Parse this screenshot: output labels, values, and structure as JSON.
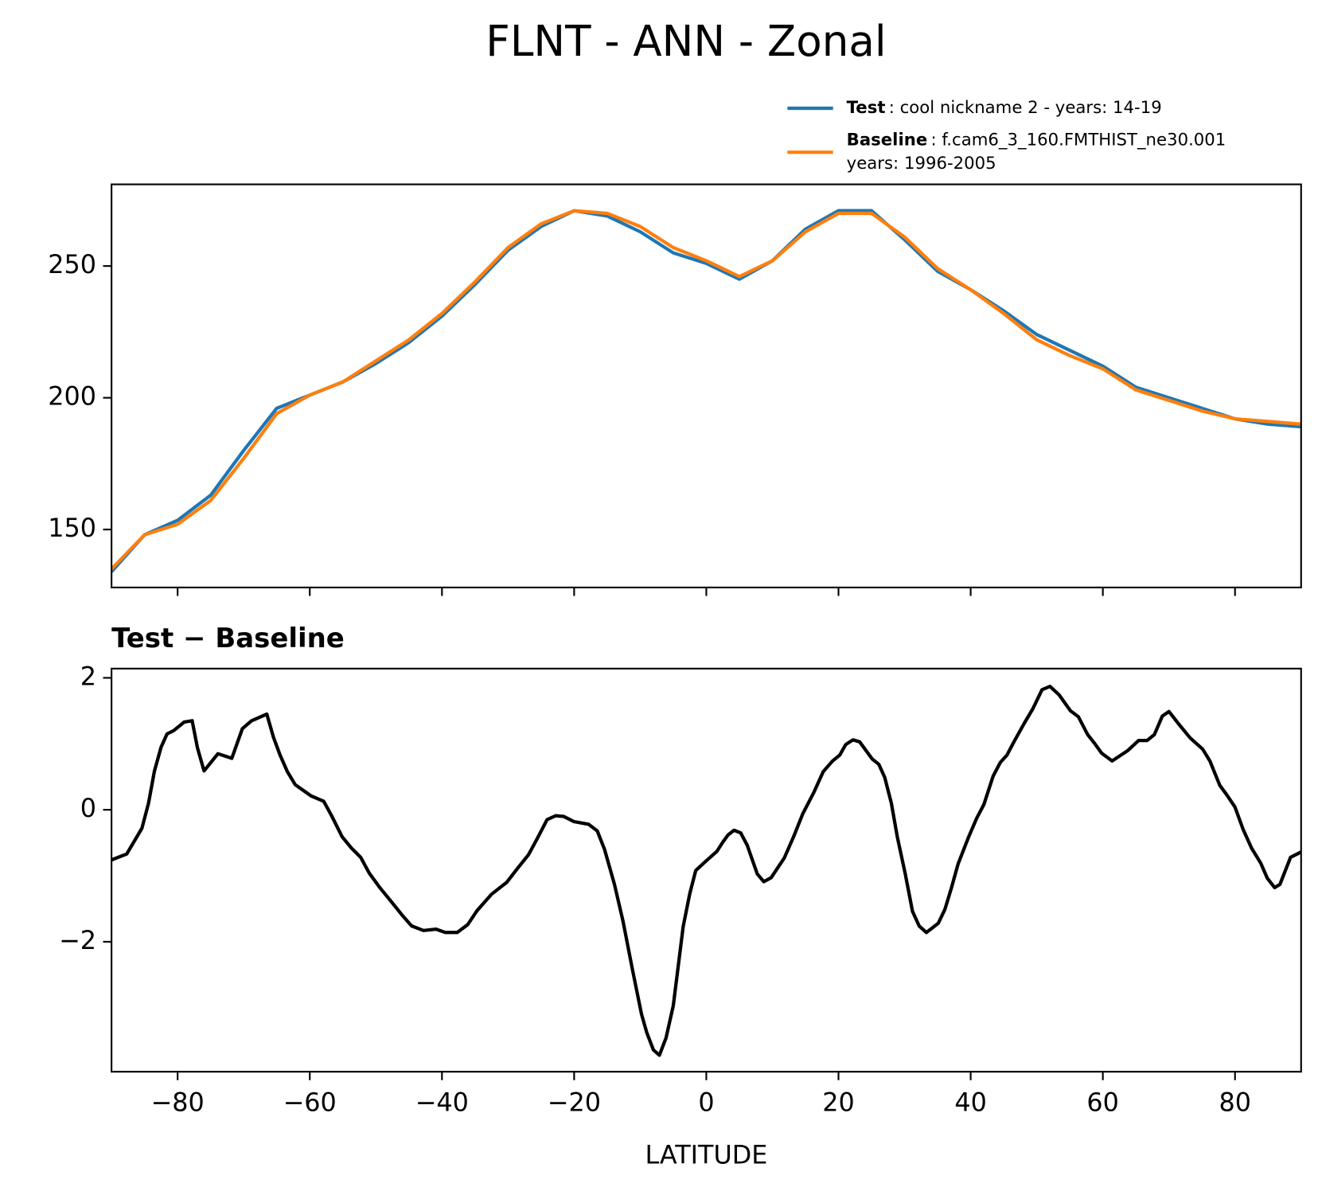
{
  "title": "FLNT - ANN - Zonal",
  "chart_data": [
    {
      "type": "line",
      "x": [
        -90,
        -85,
        -80,
        -75,
        -70,
        -65,
        -60,
        -55,
        -50,
        -45,
        -40,
        -35,
        -30,
        -25,
        -20,
        -15,
        -10,
        -5,
        0,
        5,
        10,
        15,
        20,
        25,
        30,
        35,
        40,
        45,
        50,
        55,
        60,
        65,
        70,
        75,
        80,
        85,
        90
      ],
      "series": [
        {
          "name": "Test",
          "legend_text": [
            ": cool nickname 2 - years: 14-19"
          ],
          "color": "#1f77b4",
          "values": [
            134,
            148,
            153.5,
            163,
            180,
            196,
            201,
            206,
            213,
            221,
            231,
            243,
            256,
            265,
            271,
            269,
            263,
            255,
            251,
            245,
            252,
            264,
            271,
            271,
            260,
            248,
            241,
            233,
            224,
            218,
            212,
            204,
            200,
            196,
            192,
            190,
            189
          ]
        },
        {
          "name": "Baseline",
          "legend_text": [
            ": f.cam6_3_160.FMTHIST_ne30.001",
            "years: 1996-2005"
          ],
          "color": "#ff7f0e",
          "values": [
            135,
            148,
            152,
            161,
            177,
            194,
            201,
            206,
            214,
            222,
            232,
            244,
            257,
            266,
            271,
            270,
            265,
            257,
            252,
            246,
            252,
            263,
            270,
            270,
            261,
            249,
            241,
            232,
            222,
            216,
            211,
            203,
            199,
            195,
            192,
            191,
            190
          ]
        }
      ],
      "xlim": [
        -90,
        90
      ],
      "xticks": [
        -80,
        -60,
        -40,
        -20,
        0,
        20,
        40,
        60,
        80
      ],
      "xticklabels": false,
      "ylim": [
        128,
        281
      ],
      "yticks": [
        150,
        200,
        250
      ],
      "legend": "upper right"
    },
    {
      "type": "line",
      "title": "Test − Baseline",
      "xlabel": "LATITUDE",
      "x": [
        -90,
        -87.7,
        -85.4,
        -84.4,
        -83.5,
        -82.5,
        -81.6,
        -80.6,
        -79,
        -77.8,
        -77,
        -76,
        -73.9,
        -71.8,
        -70.2,
        -68.8,
        -66.5,
        -65.5,
        -64.5,
        -63.4,
        -62.2,
        -59.8,
        -57.9,
        -56.7,
        -55.1,
        -53.7,
        -52.3,
        -51,
        -49.4,
        -47.6,
        -46,
        -44.6,
        -42.8,
        -40.9,
        -39.5,
        -37.7,
        -36.1,
        -34.7,
        -32.5,
        -30.2,
        -28.5,
        -26.9,
        -25.6,
        -24.1,
        -22.8,
        -21.6,
        -20,
        -17.8,
        -16.5,
        -15.4,
        -13.9,
        -12.6,
        -11.2,
        -9.8,
        -9,
        -8,
        -7.1,
        -6.1,
        -5,
        -3.5,
        -2.5,
        -1.6,
        -0.2,
        1.6,
        2.5,
        3.3,
        4.2,
        5.2,
        6.2,
        7.7,
        8.7,
        9.8,
        11.8,
        13.2,
        14.6,
        16.3,
        17.7,
        19.1,
        20.2,
        21.1,
        22.2,
        23.2,
        25.1,
        26.1,
        27,
        28,
        28.9,
        30.1,
        31.2,
        32.2,
        33.3,
        35.1,
        36.1,
        37.1,
        38.1,
        39.7,
        40.9,
        42,
        43.4,
        44.5,
        45.5,
        46.6,
        48.1,
        49.4,
        50.8,
        52,
        53.4,
        55.1,
        56.3,
        57.7,
        58.8,
        59.8,
        61.4,
        62.6,
        63.8,
        65.4,
        66.7,
        67.8,
        69,
        70,
        71.4,
        73.2,
        75.1,
        76.2,
        77.7,
        78.8,
        80,
        81.2,
        82.5,
        83.9,
        84.9,
        86,
        86.8,
        88.4,
        90
      ],
      "series": [
        {
          "color": "#000000",
          "values": [
            -0.76,
            -0.67,
            -0.28,
            0.1,
            0.59,
            0.95,
            1.15,
            1.2,
            1.33,
            1.35,
            0.94,
            0.59,
            0.85,
            0.78,
            1.23,
            1.35,
            1.45,
            1.1,
            0.83,
            0.58,
            0.38,
            0.21,
            0.13,
            -0.09,
            -0.41,
            -0.58,
            -0.72,
            -0.96,
            -1.18,
            -1.4,
            -1.6,
            -1.76,
            -1.83,
            -1.81,
            -1.86,
            -1.86,
            -1.74,
            -1.53,
            -1.28,
            -1.1,
            -0.88,
            -0.68,
            -0.44,
            -0.15,
            -0.09,
            -0.1,
            -0.18,
            -0.22,
            -0.32,
            -0.6,
            -1.13,
            -1.69,
            -2.41,
            -3.1,
            -3.38,
            -3.64,
            -3.72,
            -3.46,
            -2.97,
            -1.77,
            -1.27,
            -0.92,
            -0.79,
            -0.63,
            -0.49,
            -0.38,
            -0.31,
            -0.35,
            -0.54,
            -0.97,
            -1.09,
            -1.03,
            -0.73,
            -0.41,
            -0.06,
            0.27,
            0.58,
            0.74,
            0.83,
            0.99,
            1.06,
            1.03,
            0.77,
            0.69,
            0.49,
            0.1,
            -0.41,
            -0.97,
            -1.54,
            -1.76,
            -1.86,
            -1.72,
            -1.51,
            -1.18,
            -0.82,
            -0.41,
            -0.13,
            0.08,
            0.51,
            0.72,
            0.83,
            1.04,
            1.31,
            1.53,
            1.82,
            1.87,
            1.74,
            1.5,
            1.41,
            1.14,
            1.0,
            0.86,
            0.74,
            0.82,
            0.9,
            1.05,
            1.05,
            1.14,
            1.42,
            1.49,
            1.31,
            1.09,
            0.92,
            0.74,
            0.37,
            0.22,
            0.04,
            -0.29,
            -0.58,
            -0.81,
            -1.04,
            -1.18,
            -1.13,
            -0.72,
            -0.64
          ]
        }
      ],
      "xlim": [
        -90,
        90
      ],
      "xticks": [
        {
          "value": -80,
          "label": "−80"
        },
        {
          "value": -60,
          "label": "−60"
        },
        {
          "value": -40,
          "label": "−40"
        },
        {
          "value": -20,
          "label": "−20"
        },
        0,
        20,
        40,
        60,
        80
      ],
      "ylim": [
        -3.97,
        2.14
      ],
      "yticks": [
        {
          "value": -2,
          "label": "−2"
        },
        0,
        2
      ]
    }
  ]
}
